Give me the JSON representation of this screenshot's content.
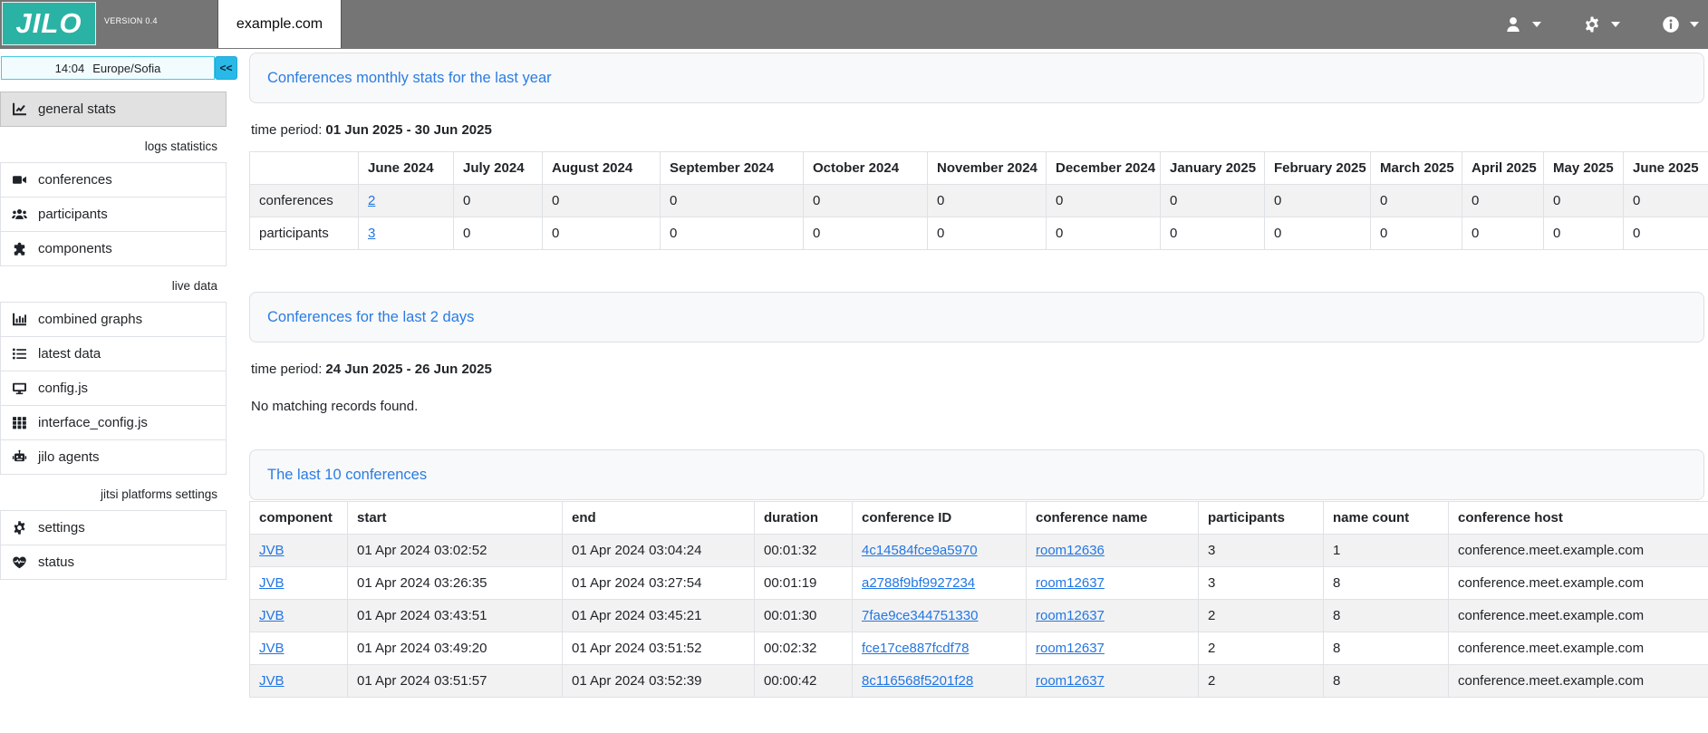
{
  "header": {
    "logo_text": "JILO",
    "version_label": "VERSION 0.4",
    "tab_label": "example.com",
    "menus": [
      {
        "name": "user-menu",
        "icon": "user-icon"
      },
      {
        "name": "settings-menu",
        "icon": "gear-icon"
      },
      {
        "name": "info-menu",
        "icon": "info-icon"
      }
    ]
  },
  "sidebar": {
    "time": "14:04",
    "timezone": "Europe/Sofia",
    "collapse_label": "<<",
    "entries": [
      {
        "type": "item",
        "icon": "chart-line-icon",
        "label": "general stats",
        "active": true
      },
      {
        "type": "section",
        "label": "logs statistics"
      },
      {
        "type": "item",
        "icon": "video-camera-icon",
        "label": "conferences"
      },
      {
        "type": "item",
        "icon": "users-icon",
        "label": "participants"
      },
      {
        "type": "item",
        "icon": "puzzle-piece-icon",
        "label": "components"
      },
      {
        "type": "section",
        "label": "live data"
      },
      {
        "type": "item",
        "icon": "bar-chart-icon",
        "label": "combined graphs"
      },
      {
        "type": "item",
        "icon": "list-icon",
        "label": "latest data"
      },
      {
        "type": "item",
        "icon": "monitor-icon",
        "label": "config.js"
      },
      {
        "type": "item",
        "icon": "grid-icon",
        "label": "interface_config.js"
      },
      {
        "type": "item",
        "icon": "robot-icon",
        "label": "jilo agents"
      },
      {
        "type": "section",
        "label": "jitsi platforms settings"
      },
      {
        "type": "item",
        "icon": "gear-icon",
        "label": "settings"
      },
      {
        "type": "item",
        "icon": "heart-pulse-icon",
        "label": "status"
      }
    ]
  },
  "monthly_stats": {
    "title": "Conferences monthly stats for the last year",
    "time_period_label": "time period:",
    "time_period_value": "01 Jun 2025 - 30 Jun 2025",
    "table": {
      "columns": [
        "",
        "June 2024",
        "July 2024",
        "August 2024",
        "September 2024",
        "October 2024",
        "November 2024",
        "December 2024",
        "January 2025",
        "February 2025",
        "March 2025",
        "April 2025",
        "May 2025",
        "June 2025"
      ],
      "rows": [
        {
          "label": "conferences",
          "values": [
            "2",
            "0",
            "0",
            "0",
            "0",
            "0",
            "0",
            "0",
            "0",
            "0",
            "0",
            "0",
            "0"
          ],
          "first_value_is_link": true
        },
        {
          "label": "participants",
          "values": [
            "3",
            "0",
            "0",
            "0",
            "0",
            "0",
            "0",
            "0",
            "0",
            "0",
            "0",
            "0",
            "0"
          ],
          "first_value_is_link": true
        }
      ]
    }
  },
  "last_two_days": {
    "title": "Conferences for the last 2 days",
    "time_period_label": "time period:",
    "time_period_value": "24 Jun 2025 - 26 Jun 2025",
    "empty_message": "No matching records found."
  },
  "last_conferences": {
    "title": "The last 10 conferences",
    "columns": [
      "component",
      "start",
      "end",
      "duration",
      "conference ID",
      "conference name",
      "participants",
      "name count",
      "conference host"
    ],
    "rows": [
      {
        "component": "JVB",
        "start": "01 Apr 2024 03:02:52",
        "end": "01 Apr 2024 03:04:24",
        "duration": "00:01:32",
        "conference_id": "4c14584fce9a5970",
        "conference_name": "room12636",
        "participants": "3",
        "name_count": "1",
        "conference_host": "conference.meet.example.com"
      },
      {
        "component": "JVB",
        "start": "01 Apr 2024 03:26:35",
        "end": "01 Apr 2024 03:27:54",
        "duration": "00:01:19",
        "conference_id": "a2788f9bf9927234",
        "conference_name": "room12637",
        "participants": "3",
        "name_count": "8",
        "conference_host": "conference.meet.example.com"
      },
      {
        "component": "JVB",
        "start": "01 Apr 2024 03:43:51",
        "end": "01 Apr 2024 03:45:21",
        "duration": "00:01:30",
        "conference_id": "7fae9ce344751330",
        "conference_name": "room12637",
        "participants": "2",
        "name_count": "8",
        "conference_host": "conference.meet.example.com"
      },
      {
        "component": "JVB",
        "start": "01 Apr 2024 03:49:20",
        "end": "01 Apr 2024 03:51:52",
        "duration": "00:02:32",
        "conference_id": "fce17ce887fcdf78",
        "conference_name": "room12637",
        "participants": "2",
        "name_count": "8",
        "conference_host": "conference.meet.example.com"
      },
      {
        "component": "JVB",
        "start": "01 Apr 2024 03:51:57",
        "end": "01 Apr 2024 03:52:39",
        "duration": "00:00:42",
        "conference_id": "8c116568f5201f28",
        "conference_name": "room12637",
        "participants": "2",
        "name_count": "8",
        "conference_host": "conference.meet.example.com"
      }
    ]
  },
  "colors": {
    "brand_teal": "#2ab3a5",
    "topbar_gray": "#757575",
    "link_blue": "#2276e4",
    "accent_cyan": "#29b9e8",
    "card_header_bg": "#f8f9fa",
    "stripe_gray": "#f2f2f2",
    "border_gray": "#dee2e6"
  }
}
